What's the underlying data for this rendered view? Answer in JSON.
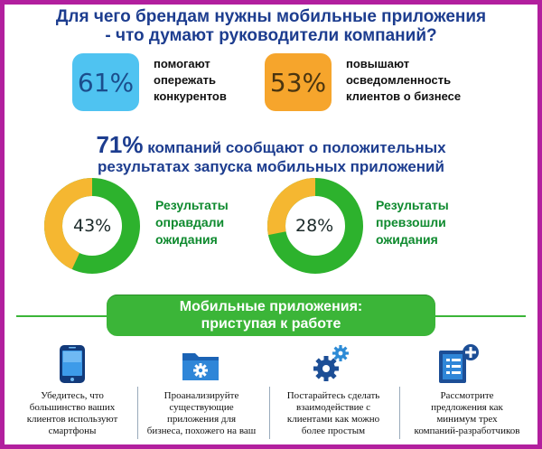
{
  "title": {
    "line1": "Для чего брендам нужны мобильные приложения",
    "line2": "- что думают руководители компаний?"
  },
  "stats": [
    {
      "value": "61%",
      "lines": [
        "помогают",
        "опережать",
        "конкурентов"
      ],
      "color": "#4fc3f1"
    },
    {
      "value": "53%",
      "lines": [
        "повышают",
        "осведомленность",
        "клиентов о  бизнесе"
      ],
      "color": "#f6a52c"
    }
  ],
  "headline": {
    "big": "71%",
    "line1_rest": " компаний сообщают о положительных",
    "line2": "результатах запуска мобильных приложений"
  },
  "donuts": [
    {
      "label": "43%",
      "fraction": 0.43,
      "lines": [
        "Результаты",
        "оправдали",
        "ожидания"
      ],
      "fill_color": "#f5b731",
      "rest_color": "#2db22d"
    },
    {
      "label": "28%",
      "fraction": 0.28,
      "lines": [
        "Результаты",
        "превзошли",
        "ожидания"
      ],
      "fill_color": "#f5b731",
      "rest_color": "#2db22d"
    }
  ],
  "cta": {
    "line1": "Мобильные приложения:",
    "line2": "приступая к работе",
    "color": "#3bb538"
  },
  "steps": [
    {
      "icon": "smartphone-icon",
      "lines": [
        "Убедитесь, что",
        "большинство ваших",
        "клиентов используют",
        "смартфоны"
      ]
    },
    {
      "icon": "folder-gear-icon",
      "lines": [
        "Проанализируйте",
        "существующие",
        "приложения для",
        "бизнеса, похожего на ваш"
      ]
    },
    {
      "icon": "gears-icon",
      "lines": [
        "Постарайтесь сделать",
        "взаимодействие с",
        "клиентами как можно",
        "более простым"
      ]
    },
    {
      "icon": "document-plus-icon",
      "lines": [
        "Рассмотрите",
        "предложения как",
        "минимум трех",
        "компаний-разработчиков"
      ]
    }
  ],
  "colors": {
    "border": "#b21f9e",
    "navy": "#1d3d8f",
    "green": "#0e8a2e",
    "blue_icon": "#1f78c8"
  }
}
